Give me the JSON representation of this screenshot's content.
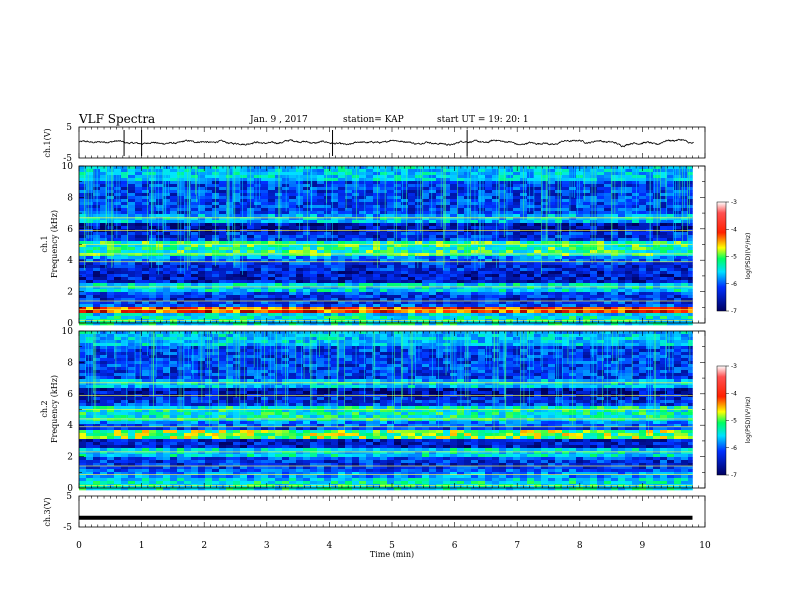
{
  "header": {
    "title": "VLF Spectra",
    "date": "Jan. 9 , 2017",
    "station": "station= KAP",
    "start": "start UT =  19: 20: 1"
  },
  "chart_data": [
    {
      "type": "line",
      "name": "ch1-waveform",
      "ylabel": "ch.1(V)",
      "ylim": [
        -5,
        5
      ],
      "yticks": [
        "5",
        "-5"
      ],
      "xlim": [
        0,
        10
      ],
      "note": "noisy waveform with amplitude roughly within -1.5 to +1.5 V"
    },
    {
      "type": "heatmap",
      "name": "ch1-spectrogram",
      "ylabel_line1": "ch.1",
      "ylabel_line2": "Frequency (kHz)",
      "ylim": [
        0,
        10
      ],
      "yticks": [
        "0",
        "2",
        "4",
        "6",
        "8",
        "10"
      ],
      "xlim": [
        0,
        10
      ],
      "data_end_min": 9.8,
      "colorbar": {
        "label": "log(PSD)(V²/Hz)",
        "range": [
          -7,
          -3
        ],
        "ticks": [
          "-3",
          "-4",
          "-5",
          "-6",
          "-7"
        ],
        "colormap": [
          "#7f0000",
          "#ff0000",
          "#ffff00",
          "#00ff80",
          "#00ffff",
          "#0040ff",
          "#000080"
        ]
      }
    },
    {
      "type": "heatmap",
      "name": "ch2-spectrogram",
      "ylabel_line1": "ch.2",
      "ylabel_line2": "Frequency (kHz)",
      "ylim": [
        0,
        10
      ],
      "yticks": [
        "0",
        "2",
        "4",
        "6",
        "8",
        "10"
      ],
      "xlim": [
        0,
        10
      ],
      "data_end_min": 9.8,
      "colorbar": {
        "label": "log(PSD)(V²/Hz)",
        "range": [
          -7,
          -3
        ],
        "ticks": [
          "-3",
          "-4",
          "-5",
          "-6",
          "-7"
        ],
        "colormap": [
          "#7f0000",
          "#ff0000",
          "#ffff00",
          "#00ff80",
          "#00ffff",
          "#0040ff",
          "#000080"
        ]
      }
    },
    {
      "type": "line",
      "name": "ch3-waveform",
      "ylabel": "ch.3(V)",
      "ylim": [
        -5,
        5
      ],
      "yticks": [
        "5",
        "-5"
      ],
      "xlim": [
        0,
        10
      ],
      "constant_value": -2,
      "note": "flat thick line at about -2 V"
    }
  ],
  "xaxis": {
    "label": "Time (min)",
    "ticks": [
      "0",
      "1",
      "2",
      "3",
      "4",
      "5",
      "6",
      "7",
      "8",
      "9",
      "10"
    ]
  }
}
